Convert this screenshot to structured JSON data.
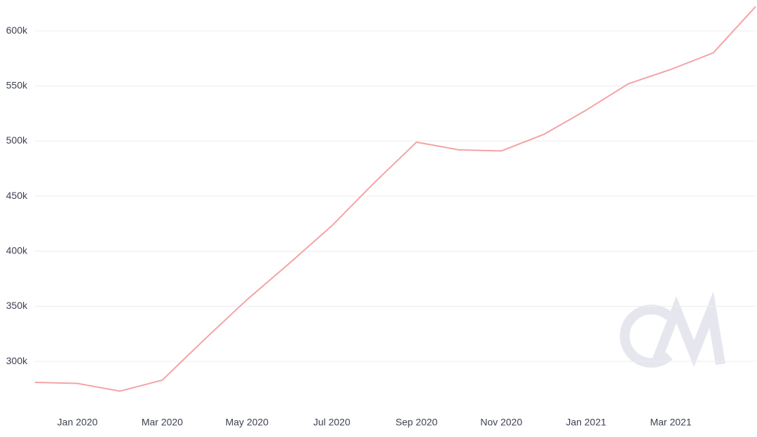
{
  "chart_data": {
    "type": "line",
    "x": [
      "2019-12",
      "2020-01",
      "2020-02",
      "2020-03",
      "2020-04",
      "2020-05",
      "2020-06",
      "2020-07",
      "2020-08",
      "2020-09",
      "2020-10",
      "2020-11",
      "2020-12",
      "2021-01",
      "2021-02",
      "2021-03",
      "2021-04",
      "2021-05"
    ],
    "series": [
      {
        "color": "#f4a3a6",
        "values": [
          281000,
          280000,
          273000,
          283000,
          320000,
          356000,
          389000,
          423000,
          462000,
          499000,
          492000,
          491000,
          506000,
          528000,
          552000,
          565000,
          580000,
          622000
        ]
      }
    ],
    "xticks": [
      {
        "value": "2020-01",
        "label": "Jan 2020"
      },
      {
        "value": "2020-03",
        "label": "Mar 2020"
      },
      {
        "value": "2020-05",
        "label": "May 2020"
      },
      {
        "value": "2020-07",
        "label": "Jul 2020"
      },
      {
        "value": "2020-09",
        "label": "Sep 2020"
      },
      {
        "value": "2020-11",
        "label": "Nov 2020"
      },
      {
        "value": "2021-01",
        "label": "Jan 2021"
      },
      {
        "value": "2021-03",
        "label": "Mar 2021"
      }
    ],
    "ylim": [
      253000,
      628000
    ],
    "yticks": [
      {
        "value": 300000,
        "label": "300k"
      },
      {
        "value": 350000,
        "label": "350k"
      },
      {
        "value": 400000,
        "label": "400k"
      },
      {
        "value": 450000,
        "label": "450k"
      },
      {
        "value": 500000,
        "label": "500k"
      },
      {
        "value": 550000,
        "label": "550k"
      },
      {
        "value": 600000,
        "label": "600k"
      }
    ],
    "grid": true
  }
}
